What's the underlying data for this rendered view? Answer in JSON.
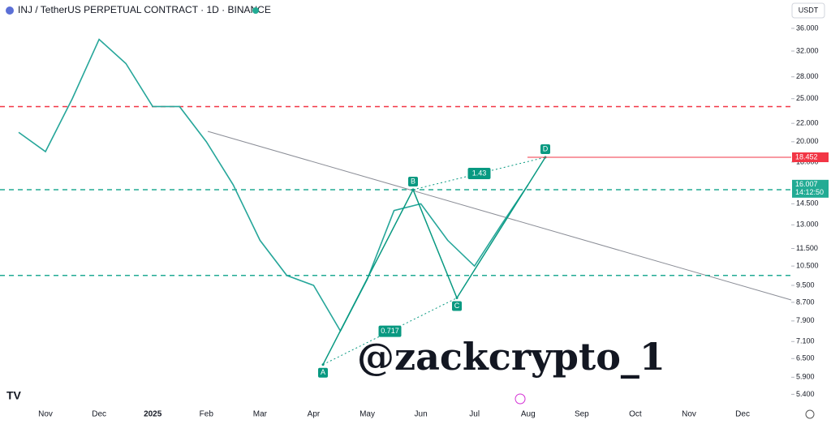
{
  "chart_data": {
    "type": "line",
    "title": "INJ / TetherUS PERPETUAL CONTRACT · 1D · BINANCE",
    "currency": "USDT",
    "watermark": "@zackcrypto_1",
    "log_scale": true,
    "categories": [
      null,
      "Nov",
      null,
      "Dec",
      null,
      "2025",
      null,
      "Feb",
      null,
      "Mar",
      null,
      "Apr",
      null,
      "May",
      null,
      "Jun",
      null,
      "Jul",
      null,
      "Aug",
      null,
      "Sep",
      null,
      "Oct",
      null,
      "Nov",
      null,
      "Dec"
    ],
    "series": [
      {
        "name": "INJUSDT",
        "color": "#26a69a",
        "values": [
          21,
          19,
          25,
          34,
          30,
          24,
          24,
          20,
          16,
          12,
          10,
          9.5,
          7.5,
          9.8,
          14,
          14.5,
          12,
          10.5,
          13,
          16,
          null,
          null,
          null,
          null,
          null,
          null,
          null,
          null
        ]
      }
    ],
    "ylim": [
      5.1,
      41.7
    ],
    "yticks": [
      {
        "value": 36,
        "label": "36.000"
      },
      {
        "value": 32,
        "label": "32.000"
      },
      {
        "value": 28,
        "label": "28.000"
      },
      {
        "value": 25,
        "label": "25.000"
      },
      {
        "value": 22,
        "label": "22.000"
      },
      {
        "value": 20,
        "label": "20.000"
      },
      {
        "value": 18,
        "label": "18.000"
      },
      {
        "value": 14.5,
        "label": "14.500"
      },
      {
        "value": 13,
        "label": "13.000"
      },
      {
        "value": 11.5,
        "label": "11.500"
      },
      {
        "value": 10.5,
        "label": "10.500"
      },
      {
        "value": 9.5,
        "label": "9.500"
      },
      {
        "value": 8.7,
        "label": "8.700"
      },
      {
        "value": 7.9,
        "label": "7.900"
      },
      {
        "value": 7.1,
        "label": "7.100"
      },
      {
        "value": 6.5,
        "label": "6.500"
      },
      {
        "value": 5.9,
        "label": "5.900"
      },
      {
        "value": 5.4,
        "label": "5.400"
      }
    ],
    "levels": [
      {
        "value": 24,
        "color": "#f23645"
      },
      {
        "value": 15.6,
        "color": "#22ab94"
      },
      {
        "value": 10,
        "color": "#22ab94"
      }
    ],
    "price_labels": [
      {
        "value": 18.452,
        "label": "18.452",
        "color": "#f23645"
      },
      {
        "value": 16.007,
        "label": "16.007",
        "countdown": "14:12:50",
        "color": "#22ab94"
      }
    ],
    "pattern": {
      "color": "#089981",
      "points": [
        {
          "label": "A",
          "value": 6.3
        },
        {
          "label": "B",
          "value": 15.6
        },
        {
          "label": "C",
          "value": 8.9
        },
        {
          "label": "D",
          "value": 18.452
        }
      ],
      "ratios": [
        "0.717",
        "1.43"
      ]
    }
  }
}
